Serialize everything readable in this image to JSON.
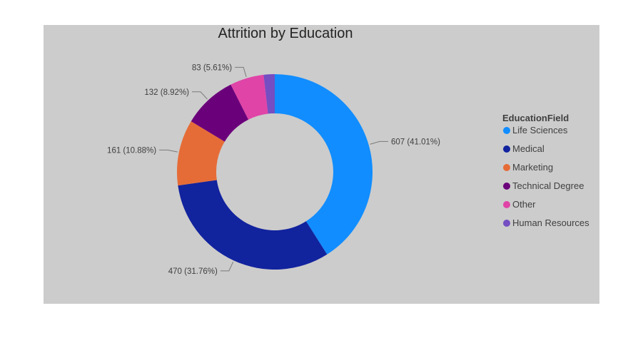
{
  "chart_data": {
    "type": "donut",
    "title": "Attrition by Education",
    "legend_title": "EducationField",
    "legend_position": "right",
    "slices": [
      {
        "name": "Life Sciences",
        "value": 607,
        "percent": "41.01%",
        "label": "607 (41.01%)",
        "color": "#118DFF"
      },
      {
        "name": "Medical",
        "value": 470,
        "percent": "31.76%",
        "label": "470 (31.76%)",
        "color": "#12239E"
      },
      {
        "name": "Marketing",
        "value": 161,
        "percent": "10.88%",
        "label": "161 (10.88%)",
        "color": "#E66C37"
      },
      {
        "name": "Technical Degree",
        "value": 132,
        "percent": "8.92%",
        "label": "132 (8.92%)",
        "color": "#6B007B"
      },
      {
        "name": "Other",
        "value": 83,
        "percent": "5.61%",
        "label": "83 (5.61%)",
        "color": "#E044A7"
      },
      {
        "name": "Human Resources",
        "value": 27,
        "percent": "1.82%",
        "label": "",
        "color": "#744EC2"
      }
    ]
  }
}
